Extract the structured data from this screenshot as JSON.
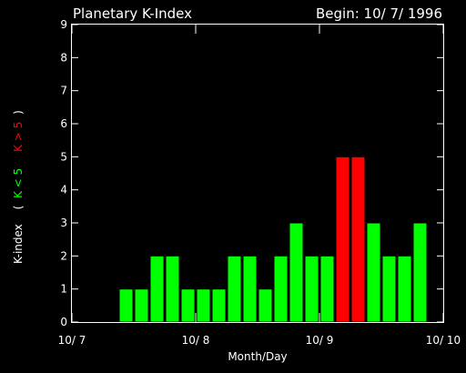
{
  "chart_data": {
    "type": "bar",
    "title": "Planetary K-Index",
    "subtitle": "Begin: 10/ 7/ 1996",
    "xlabel": "Month/Day",
    "ylabel": {
      "prefix": "K-index",
      "open": "(",
      "green_part": "K < 5",
      "red_part": "K > 5",
      "close": ")"
    },
    "ylim": [
      0,
      9
    ],
    "yticks": [
      "0",
      "1",
      "2",
      "3",
      "4",
      "5",
      "6",
      "7",
      "8",
      "9"
    ],
    "xlim_days": [
      0,
      3
    ],
    "xtick_labels": [
      "10/ 7",
      "10/ 8",
      "10/ 9",
      "10/ 10"
    ],
    "bars_per_day": 8,
    "values": [
      0,
      0,
      0,
      1,
      1,
      2,
      2,
      1,
      1,
      1,
      2,
      2,
      1,
      2,
      3,
      2,
      2,
      5,
      5,
      3,
      2,
      2,
      3,
      0
    ],
    "threshold": 5,
    "colors": {
      "low": "#00ff00",
      "high": "#ff0000",
      "axes": "#ffffff",
      "background": "#000000"
    }
  }
}
